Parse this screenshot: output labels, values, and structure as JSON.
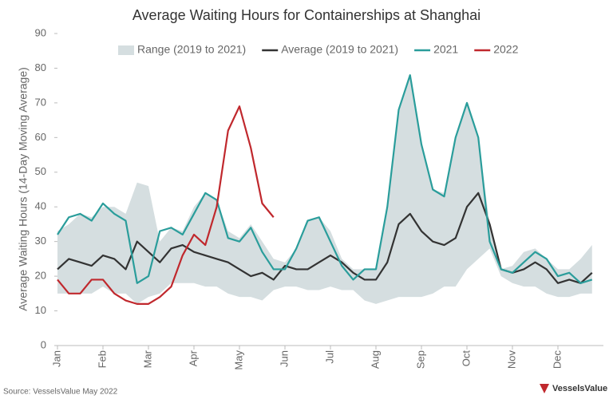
{
  "chart_data": {
    "type": "line",
    "title": "Average Waiting Hours for Containerships at Shanghai",
    "y_label": "Average Waiting Hours (14-Day Moving Average)",
    "source": "Source: VesselsValue May 2022",
    "logo": "VesselsValue",
    "categories": [
      "Jan",
      null,
      null,
      null,
      "Feb",
      null,
      null,
      null,
      "Mar",
      null,
      null,
      null,
      "Apr",
      null,
      null,
      null,
      "May",
      null,
      null,
      null,
      "Jun",
      null,
      null,
      null,
      "Jul",
      null,
      null,
      null,
      "Aug",
      null,
      null,
      null,
      "Sep",
      null,
      null,
      null,
      "Oct",
      null,
      null,
      null,
      "Nov",
      null,
      null,
      null,
      "Dec",
      null,
      null,
      null
    ],
    "ylim": [
      0,
      90
    ],
    "yticks": [
      0,
      10,
      20,
      30,
      40,
      50,
      60,
      70,
      80,
      90
    ],
    "grid": false,
    "series": [
      {
        "name": "Range (2019 to 2021)",
        "color": "#d5dee0",
        "low": [
          15,
          15,
          15,
          15,
          17,
          15,
          15,
          12,
          14,
          15,
          18,
          18,
          18,
          17,
          17,
          15,
          14,
          14,
          13,
          16,
          17,
          17,
          16,
          16,
          17,
          16,
          16,
          13,
          12,
          13,
          14,
          14,
          14,
          15,
          17,
          17,
          22,
          25,
          28,
          20,
          18,
          17,
          17,
          15,
          14,
          14,
          15,
          15
        ],
        "high": [
          33,
          35,
          38,
          37,
          40,
          40,
          38,
          47,
          46,
          30,
          34,
          33,
          40,
          44,
          42,
          33,
          31,
          35,
          30,
          25,
          24,
          28,
          36,
          37,
          33,
          25,
          22,
          22,
          22,
          40,
          68,
          78,
          58,
          45,
          44,
          60,
          70,
          60,
          35,
          22,
          23,
          27,
          28,
          25,
          22,
          22,
          25,
          29
        ]
      },
      {
        "name": "Average (2019 to 2021)",
        "color": "#333333",
        "values": [
          22,
          25,
          24,
          23,
          26,
          25,
          22,
          30,
          27,
          24,
          28,
          29,
          27,
          26,
          25,
          24,
          22,
          20,
          21,
          19,
          23,
          22,
          22,
          24,
          26,
          24,
          21,
          19,
          19,
          24,
          35,
          38,
          33,
          30,
          29,
          31,
          40,
          44,
          35,
          22,
          21,
          22,
          24,
          22,
          18,
          19,
          18,
          21
        ]
      },
      {
        "name": "2021",
        "color": "#2a9d9b",
        "values": [
          32,
          37,
          38,
          36,
          41,
          38,
          36,
          18,
          20,
          33,
          34,
          32,
          38,
          44,
          42,
          31,
          30,
          34,
          27,
          22,
          22,
          28,
          36,
          37,
          30,
          23,
          19,
          22,
          22,
          40,
          68,
          78,
          58,
          45,
          43,
          60,
          70,
          60,
          30,
          22,
          21,
          24,
          27,
          25,
          20,
          21,
          18,
          19
        ]
      },
      {
        "name": "2022",
        "color": "#c0282d",
        "values": [
          19,
          15,
          15,
          19,
          19,
          15,
          13,
          12,
          12,
          14,
          17,
          26,
          32,
          29,
          40,
          62,
          69,
          57,
          41,
          37,
          null,
          null,
          null,
          null,
          null,
          null,
          null,
          null,
          null,
          null,
          null,
          null,
          null,
          null,
          null,
          null,
          null,
          null,
          null,
          null,
          null,
          null,
          null,
          null,
          null,
          null,
          null,
          null
        ]
      }
    ]
  }
}
